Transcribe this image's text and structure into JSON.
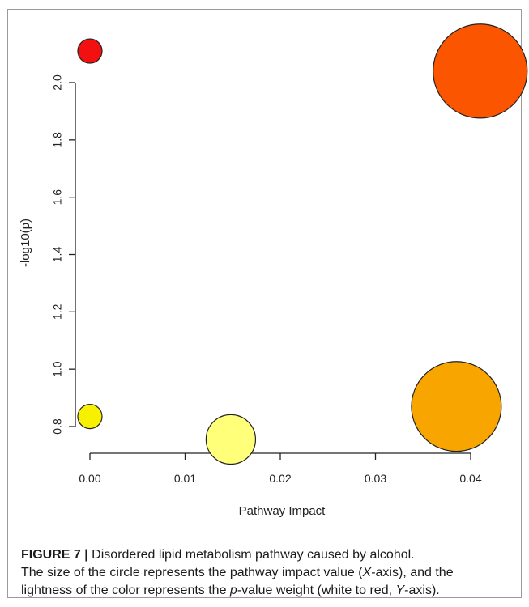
{
  "chart_data": {
    "type": "scatter",
    "xlabel": "Pathway Impact",
    "ylabel": "-log10(p)",
    "xlim": [
      -0.006,
      0.045
    ],
    "ylim": [
      0.7,
      2.2
    ],
    "xticks": [
      "0.00",
      "0.01",
      "0.02",
      "0.03",
      "0.04"
    ],
    "yticks": [
      "0.8",
      "1.0",
      "1.2",
      "1.4",
      "1.6",
      "1.8",
      "2.0"
    ],
    "points": [
      {
        "x": 0.0,
        "y": 2.11,
        "color": "#f21010",
        "size": 0.0
      },
      {
        "x": 0.041,
        "y": 2.04,
        "color": "#fb5500",
        "size": 0.041
      },
      {
        "x": 0.0385,
        "y": 0.87,
        "color": "#f9a500",
        "size": 0.0385
      },
      {
        "x": 0.0148,
        "y": 0.755,
        "color": "#ffff7a",
        "size": 0.0148
      },
      {
        "x": 0.0,
        "y": 0.835,
        "color": "#f7f100",
        "size": 0.0
      }
    ]
  },
  "caption": {
    "label": "FIGURE 7",
    "separator": "|",
    "line1_text": " Disordered lipid metabolism pathway caused by alcohol.",
    "line2_pre": "The size of the circle represents the pathway impact value (",
    "line2_x": "X",
    "line2_post": "-axis), and the",
    "line3_pre": "lightness of the color represents the ",
    "line3_p": "p",
    "line3_mid": "-value weight (white to red, ",
    "line3_y": "Y",
    "line3_post": "-axis)."
  }
}
